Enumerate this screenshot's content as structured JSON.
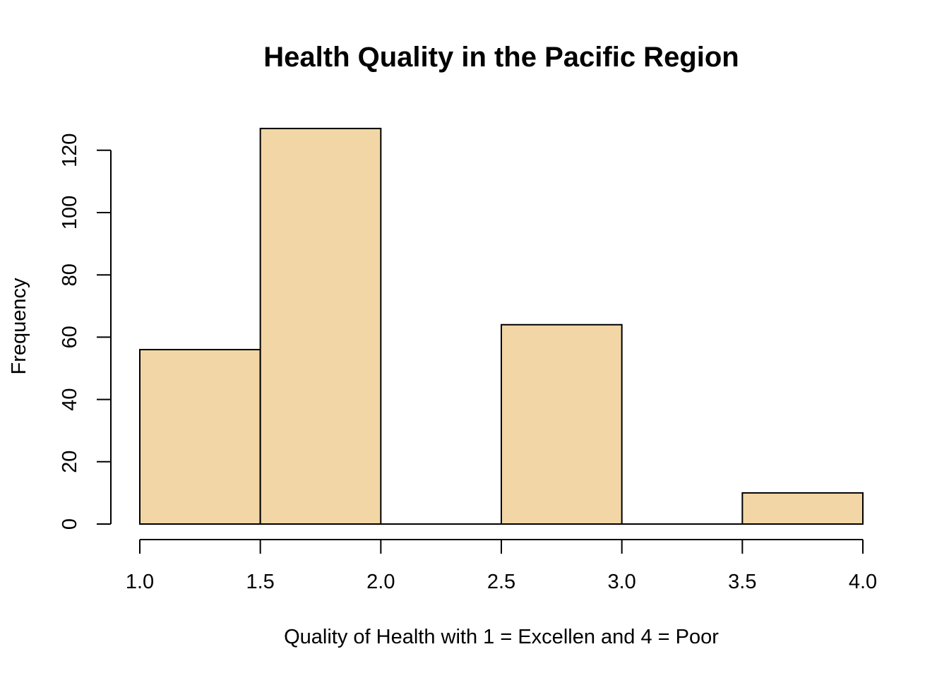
{
  "chart_data": {
    "type": "bar",
    "subtype": "histogram",
    "title": "Health Quality in the Pacific Region",
    "xlabel": "Quality of Health with 1 = Excellen and 4 = Poor",
    "ylabel": "Frequency",
    "bins": [
      {
        "start": 1.0,
        "end": 1.5,
        "value": 56
      },
      {
        "start": 1.5,
        "end": 2.0,
        "value": 127
      },
      {
        "start": 2.0,
        "end": 2.5,
        "value": 0
      },
      {
        "start": 2.5,
        "end": 3.0,
        "value": 64
      },
      {
        "start": 3.0,
        "end": 3.5,
        "value": 0
      },
      {
        "start": 3.5,
        "end": 4.0,
        "value": 10
      }
    ],
    "xlim": [
      1.0,
      4.0
    ],
    "ylim": [
      0,
      127
    ],
    "x_ticks": [
      "1.0",
      "1.5",
      "2.0",
      "2.5",
      "3.0",
      "3.5",
      "4.0"
    ],
    "y_ticks": [
      "0",
      "20",
      "40",
      "60",
      "80",
      "100",
      "120"
    ],
    "bar_color": "#F2D6A5",
    "edge_color": "#000000",
    "grid": false,
    "legend": "none"
  }
}
